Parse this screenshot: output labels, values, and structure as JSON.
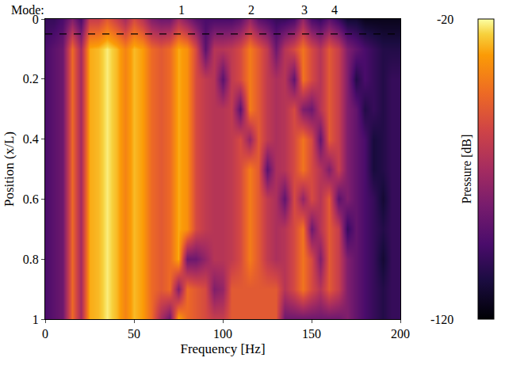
{
  "chart_data": {
    "type": "heatmap",
    "xlabel": "Frequency [Hz]",
    "ylabel": "Position (x/L)",
    "x": [
      0,
      5,
      10,
      15,
      20,
      25,
      30,
      35,
      40,
      45,
      50,
      55,
      60,
      65,
      70,
      75,
      80,
      85,
      90,
      95,
      100,
      105,
      110,
      115,
      120,
      125,
      130,
      135,
      140,
      145,
      150,
      155,
      160,
      165,
      170,
      175,
      180,
      185,
      190,
      195,
      200
    ],
    "y": [
      0,
      0.1,
      0.2,
      0.3,
      0.4,
      0.5,
      0.6,
      0.7,
      0.8,
      0.9,
      1
    ],
    "z": [
      [
        -100,
        -100,
        -95,
        -80,
        -95,
        -60,
        -60,
        -50,
        -60,
        -70,
        -55,
        -65,
        -80,
        -85,
        -85,
        -70,
        -80,
        -90,
        -95,
        -95,
        -95,
        -95,
        -90,
        -75,
        -90,
        -95,
        -100,
        -100,
        -95,
        -75,
        -95,
        -100,
        -90,
        -100,
        -110,
        -110,
        -115,
        -115,
        -115,
        -115,
        -115
      ],
      [
        -95,
        -90,
        -85,
        -45,
        -70,
        -30,
        -28,
        -22,
        -28,
        -38,
        -28,
        -32,
        -45,
        -50,
        -45,
        -30,
        -35,
        -55,
        -90,
        -65,
        -65,
        -62,
        -55,
        -40,
        -50,
        -62,
        -85,
        -65,
        -55,
        -42,
        -55,
        -65,
        -50,
        -60,
        -80,
        -88,
        -95,
        -100,
        -105,
        -105,
        -105
      ],
      [
        -95,
        -90,
        -85,
        -45,
        -70,
        -30,
        -28,
        -22,
        -28,
        -38,
        -28,
        -32,
        -45,
        -50,
        -45,
        -30,
        -35,
        -55,
        -62,
        -65,
        -90,
        -62,
        -55,
        -40,
        -50,
        -62,
        -68,
        -65,
        -88,
        -42,
        -55,
        -65,
        -50,
        -60,
        -80,
        -105,
        -95,
        -100,
        -105,
        -100,
        -100
      ],
      [
        -95,
        -90,
        -85,
        -45,
        -70,
        -30,
        -28,
        -22,
        -28,
        -38,
        -28,
        -32,
        -45,
        -50,
        -45,
        -30,
        -35,
        -55,
        -62,
        -65,
        -65,
        -62,
        -90,
        -40,
        -50,
        -62,
        -68,
        -65,
        -55,
        -80,
        -85,
        -65,
        -50,
        -60,
        -80,
        -88,
        -105,
        -100,
        -105,
        -100,
        -100
      ],
      [
        -95,
        -90,
        -85,
        -45,
        -70,
        -30,
        -28,
        -22,
        -28,
        -38,
        -28,
        -32,
        -45,
        -50,
        -45,
        -30,
        -35,
        -55,
        -62,
        -65,
        -65,
        -62,
        -55,
        -75,
        -50,
        -62,
        -68,
        -65,
        -55,
        -42,
        -55,
        -88,
        -50,
        -60,
        -80,
        -88,
        -95,
        -108,
        -105,
        -100,
        -100
      ],
      [
        -95,
        -90,
        -85,
        -45,
        -70,
        -30,
        -28,
        -22,
        -28,
        -38,
        -28,
        -32,
        -45,
        -50,
        -45,
        -30,
        -35,
        -55,
        -62,
        -65,
        -65,
        -62,
        -55,
        -40,
        -50,
        -90,
        -68,
        -65,
        -55,
        -42,
        -55,
        -65,
        -80,
        -60,
        -80,
        -88,
        -95,
        -108,
        -105,
        -100,
        -100
      ],
      [
        -95,
        -90,
        -85,
        -45,
        -70,
        -30,
        -28,
        -22,
        -28,
        -38,
        -28,
        -32,
        -45,
        -50,
        -45,
        -30,
        -35,
        -55,
        -62,
        -65,
        -65,
        -62,
        -55,
        -40,
        -50,
        -62,
        -68,
        -88,
        -55,
        -75,
        -55,
        -65,
        -50,
        -90,
        -80,
        -88,
        -95,
        -100,
        -110,
        -100,
        -100
      ],
      [
        -95,
        -90,
        -85,
        -45,
        -70,
        -30,
        -28,
        -22,
        -28,
        -38,
        -28,
        -32,
        -45,
        -50,
        -45,
        -30,
        -35,
        -55,
        -62,
        -65,
        -65,
        -62,
        -55,
        -40,
        -50,
        -62,
        -68,
        -65,
        -55,
        -42,
        -85,
        -65,
        -50,
        -60,
        -100,
        -88,
        -95,
        -100,
        -105,
        -100,
        -100
      ],
      [
        -95,
        -90,
        -85,
        -45,
        -70,
        -30,
        -28,
        -22,
        -28,
        -38,
        -28,
        -32,
        -45,
        -50,
        -45,
        -30,
        -85,
        -85,
        -75,
        -65,
        -65,
        -62,
        -55,
        -40,
        -50,
        -62,
        -68,
        -65,
        -55,
        -42,
        -55,
        -80,
        -50,
        -60,
        -80,
        -88,
        -95,
        -100,
        -110,
        -100,
        -100
      ],
      [
        -95,
        -90,
        -85,
        -45,
        -70,
        -30,
        -28,
        -22,
        -28,
        -38,
        -28,
        -32,
        -45,
        -50,
        -45,
        -80,
        -45,
        -50,
        -55,
        -80,
        -75,
        -50,
        -50,
        -50,
        -50,
        -50,
        -50,
        -65,
        -55,
        -42,
        -55,
        -65,
        -50,
        -60,
        -80,
        -88,
        -95,
        -100,
        -105,
        -100,
        -100
      ],
      [
        -95,
        -90,
        -85,
        -45,
        -70,
        -30,
        -28,
        -22,
        -28,
        -38,
        -28,
        -32,
        -45,
        -70,
        -85,
        -30,
        -45,
        -50,
        -55,
        -60,
        -60,
        -50,
        -50,
        -50,
        -50,
        -50,
        -50,
        -85,
        -85,
        -85,
        -85,
        -85,
        -85,
        -85,
        -80,
        -88,
        -95,
        -100,
        -105,
        -100,
        -100
      ]
    ],
    "xlim": [
      0,
      200
    ],
    "xticks": [
      0,
      50,
      100,
      150,
      200
    ],
    "ylim": [
      1,
      0
    ],
    "yticks": [
      0,
      0.2,
      0.4,
      0.6,
      0.8,
      1
    ],
    "colorbar": {
      "label": "Pressure [dB]",
      "range": [
        -120,
        -20
      ],
      "ticks": [
        -20,
        -120
      ]
    },
    "mode_label": "Mode:",
    "modes": [
      {
        "label": "1",
        "x": 77
      },
      {
        "label": "2",
        "x": 116
      },
      {
        "label": "3",
        "x": 146
      },
      {
        "label": "4",
        "x": 163
      }
    ],
    "reference_line": {
      "y": 0.05,
      "line_style": "dashed"
    }
  }
}
